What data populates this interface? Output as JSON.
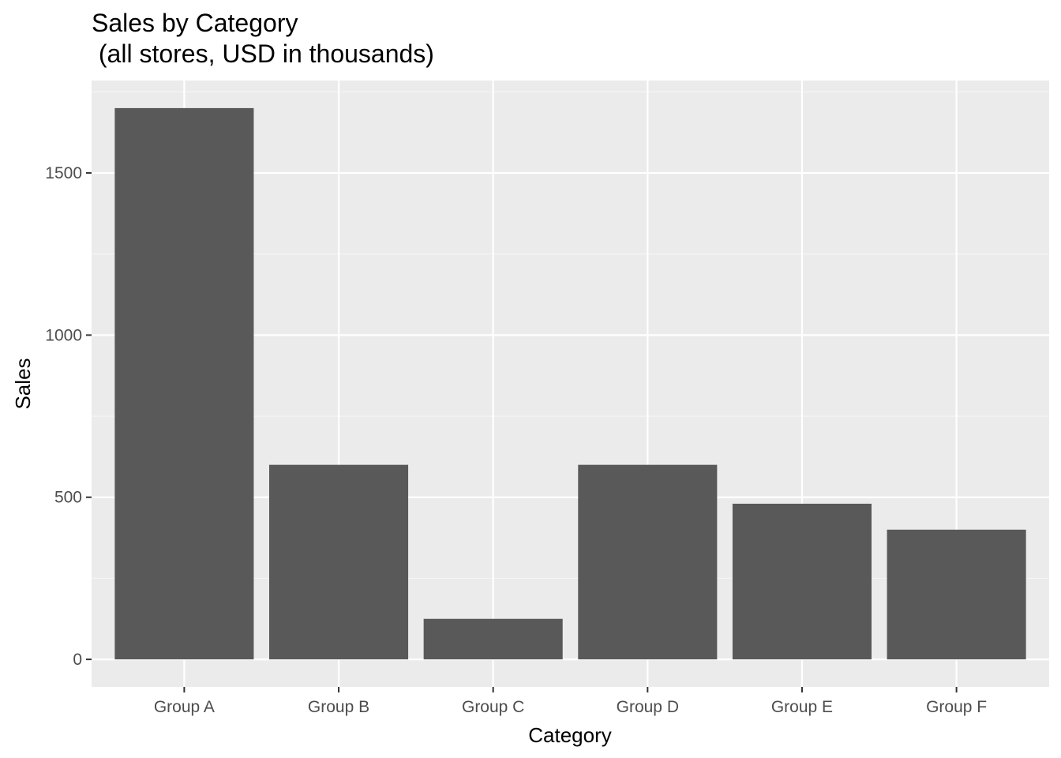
{
  "chart_data": {
    "type": "bar",
    "title_lines": [
      "Sales by Category",
      " (all stores, USD in thousands)"
    ],
    "xlabel": "Category",
    "ylabel": "Sales",
    "categories": [
      "Group A",
      "Group B",
      "Group C",
      "Group D",
      "Group E",
      "Group F"
    ],
    "values": [
      1700,
      600,
      125,
      600,
      480,
      400
    ],
    "yticks": [
      0,
      500,
      1000,
      1500
    ],
    "ylim": [
      -85,
      1785
    ],
    "grid": true,
    "colors": {
      "bar": "#595959",
      "panel": "#ebebeb",
      "grid_major": "#ffffff",
      "grid_minor": "#f5f5f5",
      "tick": "#333333"
    }
  }
}
